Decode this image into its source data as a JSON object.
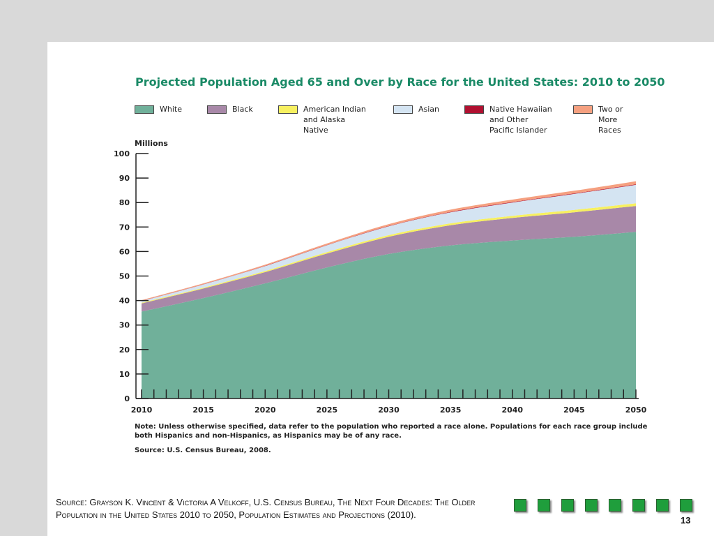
{
  "chart_data": {
    "type": "area",
    "stacked": true,
    "title": "Projected Population Aged 65 and Over by Race for the United States: 2010 to 2050",
    "ylabel": "Millions",
    "xlabel": "",
    "ylim": [
      0,
      100
    ],
    "xlim": [
      2010,
      2050
    ],
    "y_ticks": [
      0,
      10,
      20,
      30,
      40,
      50,
      60,
      70,
      80,
      90,
      100
    ],
    "x_ticks": [
      2010,
      2015,
      2020,
      2025,
      2030,
      2035,
      2040,
      2045,
      2050
    ],
    "legend_placement": "top",
    "x": [
      2010,
      2015,
      2020,
      2025,
      2030,
      2035,
      2040,
      2045,
      2050
    ],
    "series": [
      {
        "name": "White",
        "color": "#70b09a",
        "values": [
          35.5,
          41,
          47,
          53.5,
          59,
          62.5,
          64.5,
          66,
          68
        ]
      },
      {
        "name": "Black",
        "color": "#a888a8",
        "values": [
          3.3,
          3.9,
          4.6,
          5.7,
          7,
          8.2,
          9.2,
          10,
          10.6
        ]
      },
      {
        "name": "American Indian\nand Alaska\nNative",
        "color": "#f7f060",
        "values": [
          0.3,
          0.35,
          0.45,
          0.55,
          0.7,
          0.8,
          0.9,
          1,
          1.1
        ]
      },
      {
        "name": "Asian",
        "color": "#d4e4f2",
        "values": [
          0.7,
          1.3,
          2,
          2.8,
          3.6,
          4.5,
          5.4,
          6.5,
          7.5
        ]
      },
      {
        "name": "Native Hawaiian\nand Other\nPacific Islander",
        "color": "#b01030",
        "values": [
          0.05,
          0.07,
          0.1,
          0.12,
          0.15,
          0.18,
          0.2,
          0.22,
          0.25
        ]
      },
      {
        "name": "Two or\nMore\nRaces",
        "color": "#f5a080",
        "values": [
          0.3,
          0.4,
          0.5,
          0.6,
          0.75,
          0.9,
          1.0,
          1.1,
          1.2
        ]
      }
    ],
    "note": "Note: Unless otherwise specified, data refer to the population who reported a race alone.  Populations for each race group include both Hispanics and non-Hispanics, as Hispanics may be of any race.",
    "source": "Source: U.S. Census Bureau, 2008."
  },
  "footer": {
    "source": "Source: Grayson K. Vincent & Victoria A Velkoff, U.S. Census Bureau, The Next Four Decades: The Older Population in the United States 2010 to 2050, Population Estimates and Projections  (2010).",
    "page_number": "13",
    "square_color": "#1f9e3c",
    "square_count": 8
  }
}
